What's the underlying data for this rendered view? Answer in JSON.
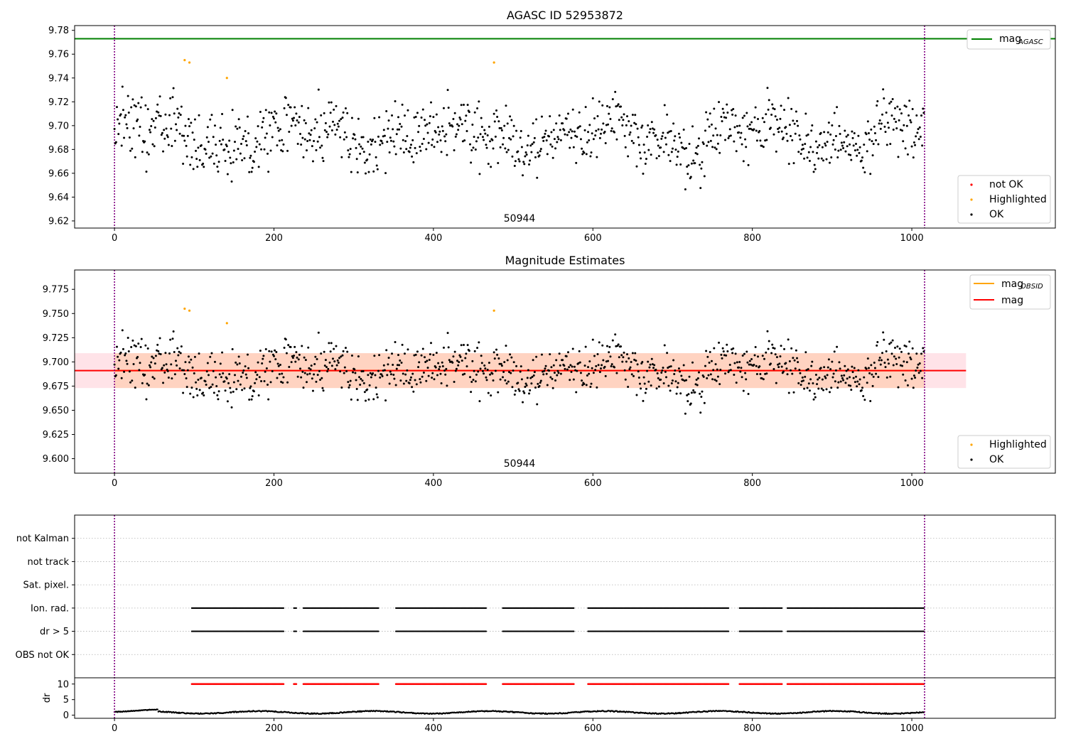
{
  "colors": {
    "ok": "#000000",
    "highlighted": "#ffa500",
    "not_ok": "#ff0000",
    "mag_agasc": "#008000",
    "mag_obsid": "#ffa500",
    "mag": "#ff0000",
    "band_outer": "#ffc0cb",
    "band_inner": "#ffbb88",
    "obs_boundary": "#800080",
    "grid": "#b0b0b0"
  },
  "chart_data": [
    {
      "type": "scatter",
      "title": "AGASC ID 52953872",
      "xlim": [
        -50,
        1180
      ],
      "ylim": [
        9.614,
        9.784
      ],
      "xticks": [
        "0",
        "200",
        "400",
        "600",
        "800",
        "1000"
      ],
      "yticks": [
        "9.62",
        "9.64",
        "9.66",
        "9.68",
        "9.70",
        "9.72",
        "9.74",
        "9.76",
        "9.78"
      ],
      "obs_boundaries": [
        0,
        1016
      ],
      "obs_label": "50944",
      "obs_label_x": 508,
      "n_points": 1016,
      "mean_mag": 9.691,
      "mag_agasc": 9.773,
      "highlighted_points": [
        {
          "x": 88,
          "y": 9.755
        },
        {
          "x": 94,
          "y": 9.753
        },
        {
          "x": 141,
          "y": 9.74
        },
        {
          "x": 476,
          "y": 9.753
        }
      ],
      "legend_lines": [
        {
          "name": "mag",
          "sub": "AGASC"
        }
      ],
      "legend_points": [
        "not OK",
        "Highlighted",
        "OK"
      ]
    },
    {
      "type": "scatter",
      "title": "Magnitude Estimates",
      "xlim": [
        -50,
        1180
      ],
      "ylim": [
        9.585,
        9.795
      ],
      "xticks": [
        "0",
        "200",
        "400",
        "600",
        "800",
        "1000"
      ],
      "yticks": [
        "9.600",
        "9.625",
        "9.650",
        "9.675",
        "9.700",
        "9.725",
        "9.750",
        "9.775"
      ],
      "obs_boundaries": [
        0,
        1016
      ],
      "obs_label": "50944",
      "obs_label_x": 508,
      "mean_mag": 9.691,
      "band_outer": [
        9.673,
        9.709
      ],
      "band_inner": [
        9.673,
        9.709
      ],
      "band_x": [
        -50,
        1068
      ],
      "legend_lines": [
        {
          "name": "mag",
          "sub": "OBSID"
        },
        {
          "name": "mag",
          "sub": ""
        }
      ],
      "legend_points": [
        "Highlighted",
        "OK"
      ]
    },
    {
      "type": "scatter",
      "title": "",
      "xlim": [
        -50,
        1180
      ],
      "flag_labels": [
        "not Kalman",
        "not track",
        "Sat. pixel.",
        "Ion. rad.",
        "dr > 5",
        "OBS not OK"
      ],
      "flag_segments": [
        [
          97,
          212
        ],
        [
          225,
          228
        ],
        [
          237,
          331
        ],
        [
          353,
          466
        ],
        [
          487,
          576
        ],
        [
          594,
          770
        ],
        [
          784,
          837
        ],
        [
          844,
          1016
        ]
      ],
      "dr_ylim": [
        -1,
        12
      ],
      "dr_yticks": [
        "0",
        "5",
        "10"
      ],
      "dr_ylabel": "dr",
      "dr_clip": 10,
      "xticks": [
        "0",
        "200",
        "400",
        "600",
        "800",
        "1000"
      ],
      "obs_boundaries": [
        0,
        1016
      ]
    }
  ]
}
